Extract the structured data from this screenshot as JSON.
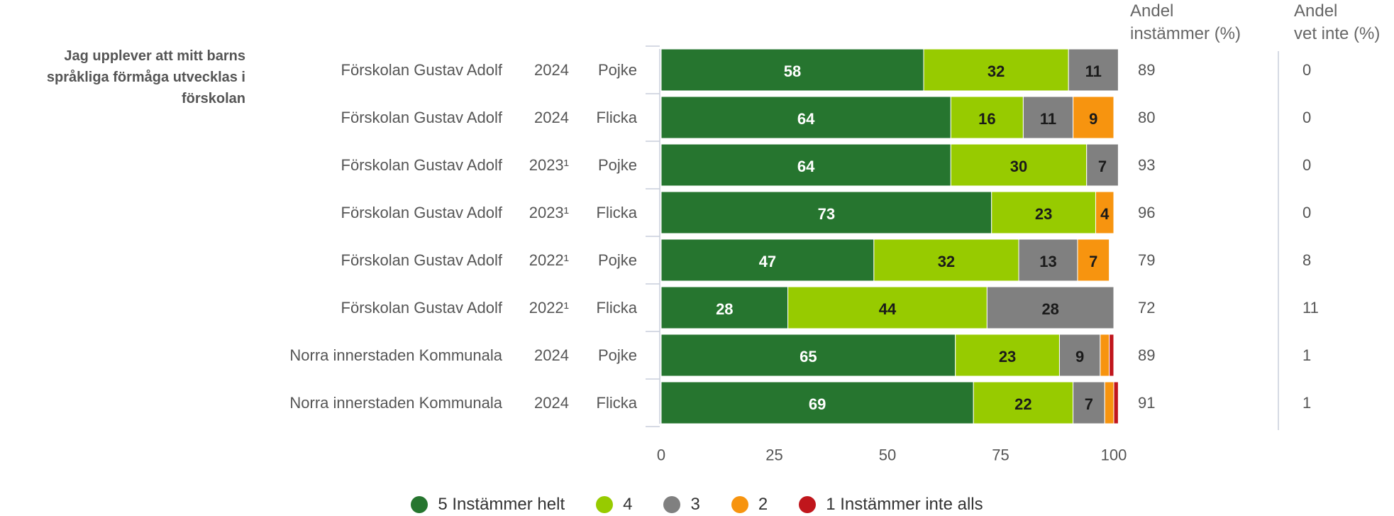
{
  "chart_data": {
    "type": "bar",
    "orientation": "horizontal",
    "stacked": true,
    "question": "Jag upplever att mitt barns språkliga förmåga utvecklas i förskolan",
    "column_headers": {
      "instammer": "Andel\ninstämmer (%)",
      "vet_inte": "Andel\nvet inte (%)"
    },
    "rows": [
      {
        "unit": "Förskolan Gustav Adolf",
        "year": "2024",
        "gender": "Pojke",
        "instammer": "89",
        "vet_inte": "0"
      },
      {
        "unit": "Förskolan Gustav Adolf",
        "year": "2024",
        "gender": "Flicka",
        "instammer": "80",
        "vet_inte": "0"
      },
      {
        "unit": "Förskolan Gustav Adolf",
        "year": "2023¹",
        "gender": "Pojke",
        "instammer": "93",
        "vet_inte": "0"
      },
      {
        "unit": "Förskolan Gustav Adolf",
        "year": "2023¹",
        "gender": "Flicka",
        "instammer": "96",
        "vet_inte": "0"
      },
      {
        "unit": "Förskolan Gustav Adolf",
        "year": "2022¹",
        "gender": "Pojke",
        "instammer": "79",
        "vet_inte": "8"
      },
      {
        "unit": "Förskolan Gustav Adolf",
        "year": "2022¹",
        "gender": "Flicka",
        "instammer": "72",
        "vet_inte": "11"
      },
      {
        "unit": "Norra innerstaden Kommunala",
        "year": "2024",
        "gender": "Pojke",
        "instammer": "89",
        "vet_inte": "1"
      },
      {
        "unit": "Norra innerstaden Kommunala",
        "year": "2024",
        "gender": "Flicka",
        "instammer": "91",
        "vet_inte": "1"
      }
    ],
    "series": [
      {
        "name": "5 Instämmer helt",
        "color": "#26752f",
        "label_color": "#ffffff",
        "values": [
          58,
          64,
          64,
          73,
          47,
          28,
          65,
          69
        ]
      },
      {
        "name": "4",
        "color": "#97cb00",
        "label_color": "#1a1a1a",
        "values": [
          32,
          16,
          30,
          23,
          32,
          44,
          23,
          22
        ]
      },
      {
        "name": "3",
        "color": "#808080",
        "label_color": "#1a1a1a",
        "values": [
          11,
          11,
          7,
          0,
          13,
          28,
          9,
          7
        ]
      },
      {
        "name": "2",
        "color": "#f7940f",
        "label_color": "#1a1a1a",
        "values": [
          0,
          9,
          0,
          4,
          7,
          0,
          2,
          2
        ]
      },
      {
        "name": "1 Instämmer inte alls",
        "color": "#c0161c",
        "label_color": "#ffffff",
        "values": [
          0,
          0,
          0,
          0,
          0,
          0,
          1,
          1
        ]
      }
    ],
    "xlim": [
      0,
      100
    ],
    "xticks": [
      "0",
      "25",
      "50",
      "75",
      "100"
    ],
    "grid": false,
    "legend_position": "bottom"
  }
}
